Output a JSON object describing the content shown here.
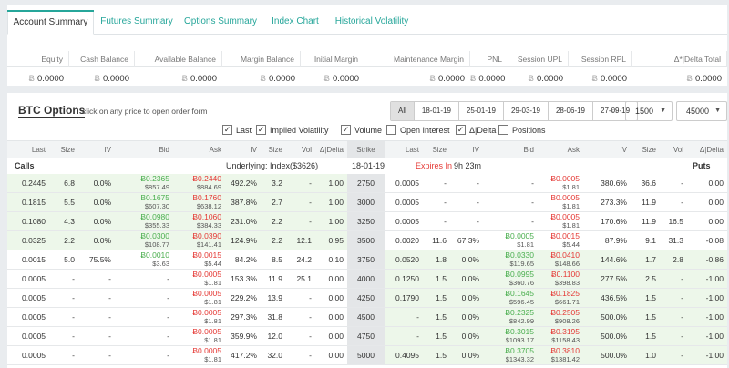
{
  "tabs": [
    "Account Summary",
    "Futures Summary",
    "Options Summary",
    "Index Chart",
    "Historical Volatility"
  ],
  "account": {
    "headers": [
      "Equity",
      "Cash Balance",
      "Available Balance",
      "Margin Balance",
      "Initial Margin",
      "Maintenance Margin",
      "PNL",
      "Session UPL",
      "Session RPL",
      "Δ*|Delta Total"
    ],
    "currency_symbol": "Ƀ",
    "values": [
      "0.0000",
      "0.0000",
      "0.0000",
      "0.0000",
      "0.0000",
      "0.0000",
      "0.0000",
      "0.0000",
      "0.0000",
      "0.0000"
    ]
  },
  "options": {
    "title": "BTC Options",
    "hint": "click on any price to open order form",
    "dates": [
      "All",
      "18-01-19",
      "25-01-19",
      "29-03-19",
      "28-06-19",
      "27-09-19"
    ],
    "strike_from": "1500",
    "strike_to": "45000",
    "checkboxes": [
      {
        "label": "Last",
        "checked": "✓"
      },
      {
        "label": "Implied Volatility",
        "checked": "✓"
      },
      {
        "label": "Volume",
        "checked": "✓"
      },
      {
        "label": "Open Interest",
        "checked": ""
      },
      {
        "label": "Δ|Delta",
        "checked": "✓"
      },
      {
        "label": "Positions",
        "checked": ""
      }
    ],
    "columns": [
      "Last",
      "Size",
      "IV",
      "Bid",
      "Ask",
      "IV",
      "Size",
      "Vol",
      "Δ|Delta",
      "Strike",
      "Last",
      "Size",
      "IV",
      "Bid",
      "Ask",
      "IV",
      "Size",
      "Vol",
      "Δ|Delta"
    ],
    "info": {
      "calls": "Calls",
      "underlying": "Underlying: Index($3626)",
      "date": "18-01-19",
      "expires_label": "Expires In",
      "expires_value": "9h 23m",
      "puts": "Puts"
    },
    "rows": [
      {
        "c_last": "0.2445",
        "c_size": "6.8",
        "c_iv": "0.0%",
        "c_bid": "Ƀ0.2365",
        "c_bid_usd": "$857.49",
        "c_ask": "Ƀ0.2440",
        "c_ask_usd": "$884.69",
        "c_iv2": "492.2%",
        "c_size2": "3.2",
        "c_vol": "-",
        "c_delta": "1.00",
        "strike": "2750",
        "p_last": "0.0005",
        "p_size": "-",
        "p_iv": "-",
        "p_bid": "-",
        "p_bid_usd": "",
        "p_ask": "Ƀ0.0005",
        "p_ask_usd": "$1.81",
        "p_iv2": "380.6%",
        "p_size2": "36.6",
        "p_vol": "-",
        "p_delta": "0.00"
      },
      {
        "c_last": "0.1815",
        "c_size": "5.5",
        "c_iv": "0.0%",
        "c_bid": "Ƀ0.1675",
        "c_bid_usd": "$607.30",
        "c_ask": "Ƀ0.1760",
        "c_ask_usd": "$638.12",
        "c_iv2": "387.8%",
        "c_size2": "2.7",
        "c_vol": "-",
        "c_delta": "1.00",
        "strike": "3000",
        "p_last": "0.0005",
        "p_size": "-",
        "p_iv": "-",
        "p_bid": "-",
        "p_bid_usd": "",
        "p_ask": "Ƀ0.0005",
        "p_ask_usd": "$1.81",
        "p_iv2": "273.3%",
        "p_size2": "11.9",
        "p_vol": "-",
        "p_delta": "0.00"
      },
      {
        "c_last": "0.1080",
        "c_size": "4.3",
        "c_iv": "0.0%",
        "c_bid": "Ƀ0.0980",
        "c_bid_usd": "$355.33",
        "c_ask": "Ƀ0.1060",
        "c_ask_usd": "$384.33",
        "c_iv2": "231.0%",
        "c_size2": "2.2",
        "c_vol": "-",
        "c_delta": "1.00",
        "strike": "3250",
        "p_last": "0.0005",
        "p_size": "-",
        "p_iv": "-",
        "p_bid": "-",
        "p_bid_usd": "",
        "p_ask": "Ƀ0.0005",
        "p_ask_usd": "$1.81",
        "p_iv2": "170.6%",
        "p_size2": "11.9",
        "p_vol": "16.5",
        "p_delta": "0.00"
      },
      {
        "c_last": "0.0325",
        "c_size": "2.2",
        "c_iv": "0.0%",
        "c_bid": "Ƀ0.0300",
        "c_bid_usd": "$108.77",
        "c_ask": "Ƀ0.0390",
        "c_ask_usd": "$141.41",
        "c_iv2": "124.9%",
        "c_size2": "2.2",
        "c_vol": "12.1",
        "c_delta": "0.95",
        "strike": "3500",
        "p_last": "0.0020",
        "p_size": "11.6",
        "p_iv": "67.3%",
        "p_bid": "Ƀ0.0005",
        "p_bid_usd": "$1.81",
        "p_ask": "Ƀ0.0015",
        "p_ask_usd": "$5.44",
        "p_iv2": "87.9%",
        "p_size2": "9.1",
        "p_vol": "31.3",
        "p_delta": "-0.08"
      },
      {
        "c_last": "0.0015",
        "c_size": "5.0",
        "c_iv": "75.5%",
        "c_bid": "Ƀ0.0010",
        "c_bid_usd": "$3.63",
        "c_ask": "Ƀ0.0015",
        "c_ask_usd": "$5.44",
        "c_iv2": "84.2%",
        "c_size2": "8.5",
        "c_vol": "24.2",
        "c_delta": "0.10",
        "strike": "3750",
        "p_last": "0.0520",
        "p_size": "1.8",
        "p_iv": "0.0%",
        "p_bid": "Ƀ0.0330",
        "p_bid_usd": "$119.65",
        "p_ask": "Ƀ0.0410",
        "p_ask_usd": "$148.66",
        "p_iv2": "144.6%",
        "p_size2": "1.7",
        "p_vol": "2.8",
        "p_delta": "-0.86"
      },
      {
        "c_last": "0.0005",
        "c_size": "-",
        "c_iv": "-",
        "c_bid": "-",
        "c_bid_usd": "",
        "c_ask": "Ƀ0.0005",
        "c_ask_usd": "$1.81",
        "c_iv2": "153.3%",
        "c_size2": "11.9",
        "c_vol": "25.1",
        "c_delta": "0.00",
        "strike": "4000",
        "p_last": "0.1250",
        "p_size": "1.5",
        "p_iv": "0.0%",
        "p_bid": "Ƀ0.0995",
        "p_bid_usd": "$360.76",
        "p_ask": "Ƀ0.1100",
        "p_ask_usd": "$398.83",
        "p_iv2": "277.5%",
        "p_size2": "2.5",
        "p_vol": "-",
        "p_delta": "-1.00"
      },
      {
        "c_last": "0.0005",
        "c_size": "-",
        "c_iv": "-",
        "c_bid": "-",
        "c_bid_usd": "",
        "c_ask": "Ƀ0.0005",
        "c_ask_usd": "$1.81",
        "c_iv2": "229.2%",
        "c_size2": "13.9",
        "c_vol": "-",
        "c_delta": "0.00",
        "strike": "4250",
        "p_last": "0.1790",
        "p_size": "1.5",
        "p_iv": "0.0%",
        "p_bid": "Ƀ0.1645",
        "p_bid_usd": "$596.45",
        "p_ask": "Ƀ0.1825",
        "p_ask_usd": "$661.71",
        "p_iv2": "436.5%",
        "p_size2": "1.5",
        "p_vol": "-",
        "p_delta": "-1.00"
      },
      {
        "c_last": "0.0005",
        "c_size": "-",
        "c_iv": "-",
        "c_bid": "-",
        "c_bid_usd": "",
        "c_ask": "Ƀ0.0005",
        "c_ask_usd": "$1.81",
        "c_iv2": "297.3%",
        "c_size2": "31.8",
        "c_vol": "-",
        "c_delta": "0.00",
        "strike": "4500",
        "p_last": "-",
        "p_size": "1.5",
        "p_iv": "0.0%",
        "p_bid": "Ƀ0.2325",
        "p_bid_usd": "$842.99",
        "p_ask": "Ƀ0.2505",
        "p_ask_usd": "$908.26",
        "p_iv2": "500.0%",
        "p_size2": "1.5",
        "p_vol": "-",
        "p_delta": "-1.00"
      },
      {
        "c_last": "0.0005",
        "c_size": "-",
        "c_iv": "-",
        "c_bid": "-",
        "c_bid_usd": "",
        "c_ask": "Ƀ0.0005",
        "c_ask_usd": "$1.81",
        "c_iv2": "359.9%",
        "c_size2": "12.0",
        "c_vol": "-",
        "c_delta": "0.00",
        "strike": "4750",
        "p_last": "-",
        "p_size": "1.5",
        "p_iv": "0.0%",
        "p_bid": "Ƀ0.3015",
        "p_bid_usd": "$1093.17",
        "p_ask": "Ƀ0.3195",
        "p_ask_usd": "$1158.43",
        "p_iv2": "500.0%",
        "p_size2": "1.5",
        "p_vol": "-",
        "p_delta": "-1.00"
      },
      {
        "c_last": "0.0005",
        "c_size": "-",
        "c_iv": "-",
        "c_bid": "-",
        "c_bid_usd": "",
        "c_ask": "Ƀ0.0005",
        "c_ask_usd": "$1.81",
        "c_iv2": "417.2%",
        "c_size2": "32.0",
        "c_vol": "-",
        "c_delta": "0.00",
        "strike": "5000",
        "p_last": "0.4095",
        "p_size": "1.5",
        "p_iv": "0.0%",
        "p_bid": "Ƀ0.3705",
        "p_bid_usd": "$1343.32",
        "p_ask": "Ƀ0.3810",
        "p_ask_usd": "$1381.42",
        "p_iv2": "500.0%",
        "p_size2": "1.0",
        "p_vol": "-",
        "p_delta": "-1.00"
      }
    ]
  }
}
